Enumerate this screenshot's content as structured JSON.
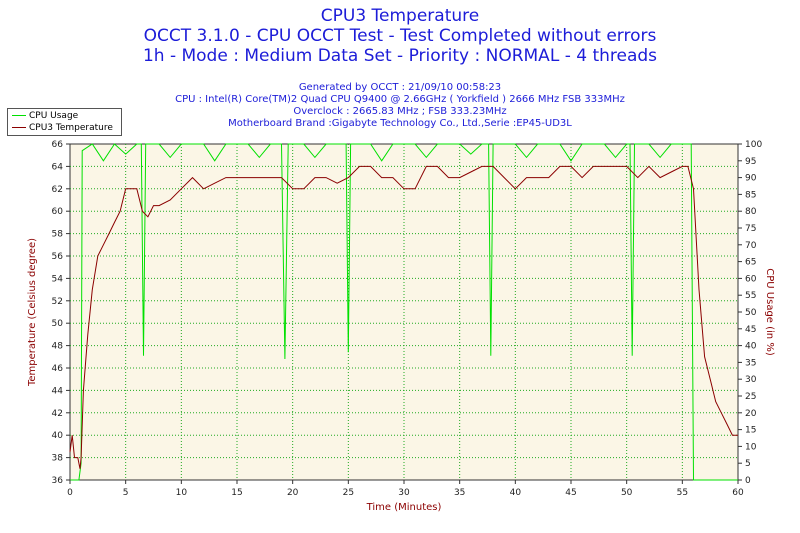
{
  "chart_data": {
    "type": "line",
    "title": "CPU3 Temperature",
    "subtitle_lines": [
      "OCCT 3.1.0 - CPU OCCT Test - Test Completed without errors",
      "1h - Mode : Medium Data Set - Priority : NORMAL - 4 threads"
    ],
    "info_lines": [
      "Generated by OCCT : 21/09/10 00:58:23",
      "CPU : Intel(R) Core(TM)2 Quad CPU Q9400 @ 2.66GHz ( Yorkfield ) 2666 MHz FSB 333MHz",
      "Overclock : 2665.83 MHz ; FSB 333.23MHz",
      "Motherboard Brand :Gigabyte Technology Co., Ltd.,Serie :EP45-UD3L"
    ],
    "xlabel": "Time (Minutes)",
    "ylabel_left": "Temperature (Celsius degree)",
    "ylabel_right": "CPU Usage (in %)",
    "xlim": [
      0,
      60
    ],
    "ylim_left": [
      36,
      66
    ],
    "ylim_right": [
      0,
      100
    ],
    "x_ticks": [
      0,
      5,
      10,
      15,
      20,
      25,
      30,
      35,
      40,
      45,
      50,
      55,
      60
    ],
    "y_ticks_left": [
      36,
      38,
      40,
      42,
      44,
      46,
      48,
      50,
      52,
      54,
      56,
      58,
      60,
      62,
      64,
      66
    ],
    "y_ticks_right": [
      0,
      5,
      10,
      15,
      20,
      25,
      30,
      35,
      40,
      45,
      50,
      55,
      60,
      65,
      70,
      75,
      80,
      85,
      90,
      95,
      100
    ],
    "grid": true,
    "legend_position": "top-left",
    "series": [
      {
        "name": "CPU Usage",
        "axis": "right",
        "color": "#00e000",
        "points": [
          [
            0,
            0
          ],
          [
            0.8,
            0
          ],
          [
            1.0,
            5
          ],
          [
            1.1,
            98
          ],
          [
            2,
            100
          ],
          [
            3,
            95
          ],
          [
            4,
            100
          ],
          [
            5,
            97
          ],
          [
            6,
            100
          ],
          [
            6.4,
            100
          ],
          [
            6.6,
            37
          ],
          [
            6.8,
            100
          ],
          [
            8,
            100
          ],
          [
            9,
            96
          ],
          [
            10,
            100
          ],
          [
            12,
            100
          ],
          [
            13,
            95
          ],
          [
            14,
            100
          ],
          [
            16,
            100
          ],
          [
            17,
            96
          ],
          [
            18,
            100
          ],
          [
            19,
            100
          ],
          [
            19.3,
            36
          ],
          [
            19.6,
            100
          ],
          [
            21,
            100
          ],
          [
            22,
            96
          ],
          [
            23,
            100
          ],
          [
            24,
            100
          ],
          [
            24.8,
            100
          ],
          [
            25,
            38
          ],
          [
            25.2,
            100
          ],
          [
            27,
            100
          ],
          [
            28,
            95
          ],
          [
            29,
            100
          ],
          [
            31,
            100
          ],
          [
            32,
            96
          ],
          [
            33,
            100
          ],
          [
            35,
            100
          ],
          [
            36,
            97
          ],
          [
            37,
            100
          ],
          [
            37.6,
            100
          ],
          [
            37.8,
            37
          ],
          [
            38,
            100
          ],
          [
            40,
            100
          ],
          [
            41,
            96
          ],
          [
            42,
            100
          ],
          [
            44,
            100
          ],
          [
            45,
            95
          ],
          [
            46,
            100
          ],
          [
            48,
            100
          ],
          [
            49,
            96
          ],
          [
            50,
            100
          ],
          [
            50.3,
            100
          ],
          [
            50.5,
            37
          ],
          [
            50.7,
            100
          ],
          [
            52,
            100
          ],
          [
            53,
            96
          ],
          [
            54,
            100
          ],
          [
            55.8,
            100
          ],
          [
            56,
            0
          ],
          [
            60,
            0
          ]
        ]
      },
      {
        "name": "CPU3 Temperature",
        "axis": "left",
        "color": "#8b0000",
        "points": [
          [
            0,
            38.5
          ],
          [
            0.2,
            40
          ],
          [
            0.4,
            38
          ],
          [
            0.7,
            38
          ],
          [
            0.9,
            37
          ],
          [
            1.0,
            38
          ],
          [
            1.2,
            44
          ],
          [
            1.6,
            49
          ],
          [
            2,
            53
          ],
          [
            2.5,
            56
          ],
          [
            3,
            57
          ],
          [
            3.5,
            58
          ],
          [
            4,
            59
          ],
          [
            4.5,
            60
          ],
          [
            5,
            62
          ],
          [
            6,
            62
          ],
          [
            6.5,
            60
          ],
          [
            7,
            59.5
          ],
          [
            7.5,
            60.5
          ],
          [
            8,
            60.5
          ],
          [
            9,
            61
          ],
          [
            10,
            62
          ],
          [
            11,
            63
          ],
          [
            12,
            62
          ],
          [
            13,
            62.5
          ],
          [
            14,
            63
          ],
          [
            15,
            63
          ],
          [
            16,
            63
          ],
          [
            17,
            63
          ],
          [
            18,
            63
          ],
          [
            19,
            63
          ],
          [
            20,
            62
          ],
          [
            21,
            62
          ],
          [
            22,
            63
          ],
          [
            23,
            63
          ],
          [
            24,
            62.5
          ],
          [
            25,
            63
          ],
          [
            26,
            64
          ],
          [
            27,
            64
          ],
          [
            28,
            63
          ],
          [
            29,
            63
          ],
          [
            30,
            62
          ],
          [
            31,
            62
          ],
          [
            32,
            64
          ],
          [
            33,
            64
          ],
          [
            34,
            63
          ],
          [
            35,
            63
          ],
          [
            36,
            63.5
          ],
          [
            37,
            64
          ],
          [
            38,
            64
          ],
          [
            39,
            63
          ],
          [
            40,
            62
          ],
          [
            41,
            63
          ],
          [
            42,
            63
          ],
          [
            43,
            63
          ],
          [
            44,
            64
          ],
          [
            45,
            64
          ],
          [
            46,
            63
          ],
          [
            47,
            64
          ],
          [
            48,
            64
          ],
          [
            49,
            64
          ],
          [
            50,
            64
          ],
          [
            51,
            63
          ],
          [
            52,
            64
          ],
          [
            53,
            63
          ],
          [
            54,
            63.5
          ],
          [
            55,
            64
          ],
          [
            55.5,
            64
          ],
          [
            56,
            62
          ],
          [
            56.5,
            53
          ],
          [
            57,
            47
          ],
          [
            57.5,
            45
          ],
          [
            58,
            43
          ],
          [
            58.5,
            42
          ],
          [
            59,
            41
          ],
          [
            59.5,
            40
          ],
          [
            60,
            40
          ]
        ]
      }
    ],
    "colors": {
      "plot_bg": "#fbf6e6",
      "grid": "#22aa22",
      "title": "#1c1cd8",
      "axis_label_left": "#8b0000",
      "axis_label_x": "#8b0000"
    }
  }
}
